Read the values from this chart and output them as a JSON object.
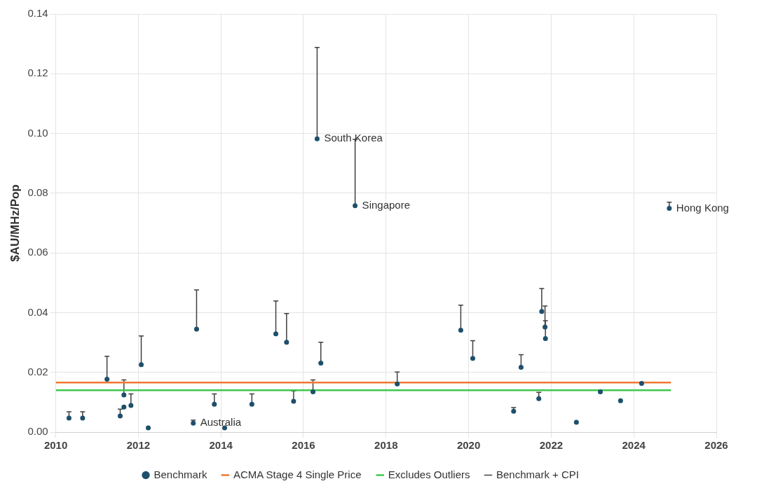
{
  "chart_data": {
    "type": "scatter",
    "ylabel": "$AU/MHz/Pop",
    "xlim": [
      2010,
      2026
    ],
    "xticks": [
      2010,
      2012,
      2014,
      2016,
      2018,
      2020,
      2022,
      2024,
      2026
    ],
    "ylim": [
      0,
      0.14
    ],
    "yticks": [
      {
        "value": 0,
        "label": "0.00"
      },
      {
        "value": 0.02,
        "label": "0.02"
      },
      {
        "value": 0.04,
        "label": "0.04"
      },
      {
        "value": 0.06,
        "label": "0.06"
      },
      {
        "value": 0.08,
        "label": "0.08"
      },
      {
        "value": 0.1,
        "label": "0.10"
      },
      {
        "value": 0.12,
        "label": "0.12"
      },
      {
        "value": 0.14,
        "label": "0.14"
      }
    ],
    "grid": true,
    "legend": "bottom",
    "series": [
      {
        "name": "Benchmark",
        "marker": "circle",
        "color": "#1d4f6b",
        "x": [
          2010.32,
          2010.65,
          2011.24,
          2011.56,
          2011.65,
          2011.65,
          2011.82,
          2012.07,
          2012.24,
          2013.33,
          2013.41,
          2013.84,
          2014.09,
          2014.75,
          2015.33,
          2015.59,
          2015.76,
          2016.23,
          2016.33,
          2016.42,
          2017.25,
          2018.27,
          2019.81,
          2020.1,
          2021.09,
          2021.27,
          2021.7,
          2021.77,
          2021.85,
          2021.86,
          2022.61,
          2023.19,
          2023.68,
          2024.19,
          2024.86
        ],
        "values": [
          0.0047,
          0.0047,
          0.0177,
          0.0054,
          0.0124,
          0.0084,
          0.0089,
          0.0226,
          0.0014,
          0.003,
          0.0345,
          0.0093,
          0.0014,
          0.0093,
          0.0329,
          0.0301,
          0.0103,
          0.0135,
          0.0982,
          0.0231,
          0.0758,
          0.0161,
          0.0341,
          0.0247,
          0.007,
          0.0217,
          0.0112,
          0.0404,
          0.0352,
          0.0313,
          0.0033,
          0.0135,
          0.0105,
          0.0163,
          0.0749
        ],
        "errors": [
          [
            0.0047,
            0.0068
          ],
          [
            0.0047,
            0.0068
          ],
          [
            0.0177,
            0.0254
          ],
          [
            0.0054,
            0.0077
          ],
          [
            0.0124,
            0.0175
          ],
          null,
          [
            0.0089,
            0.0128
          ],
          [
            0.0226,
            0.0322
          ],
          null,
          [
            0.003,
            0.004
          ],
          [
            0.0345,
            0.0476
          ],
          [
            0.0093,
            0.0128
          ],
          null,
          [
            0.0093,
            0.0128
          ],
          [
            0.0329,
            0.0439
          ],
          [
            0.0301,
            0.0397
          ],
          [
            0.0103,
            0.0138
          ],
          [
            0.0135,
            0.0175
          ],
          [
            0.0982,
            0.1288
          ],
          [
            0.0231,
            0.0301
          ],
          [
            0.0758,
            0.098
          ],
          [
            0.0161,
            0.0201
          ],
          [
            0.0341,
            0.0425
          ],
          [
            0.0247,
            0.0306
          ],
          [
            0.007,
            0.0082
          ],
          [
            0.0217,
            0.0259
          ],
          [
            0.0112,
            0.0133
          ],
          [
            0.0404,
            0.0481
          ],
          [
            0.0352,
            0.0422
          ],
          [
            0.0313,
            0.0373
          ],
          null,
          null,
          null,
          null,
          [
            0.0749,
            0.077
          ]
        ]
      },
      {
        "name": "ACMA Stage 4 Single Price",
        "type": "line",
        "marker": "none",
        "color": "#f07832",
        "x": [
          2010,
          2024.9
        ],
        "values": [
          0.0166,
          0.0166
        ]
      },
      {
        "name": "Excludes Outliers",
        "type": "line",
        "marker": "none",
        "color": "#3ec84e",
        "x": [
          2010,
          2024.9
        ],
        "values": [
          0.014,
          0.014
        ]
      }
    ],
    "annotations": [
      {
        "text": "South Korea",
        "x": 2016.33,
        "y": 0.0982
      },
      {
        "text": "Singapore",
        "x": 2017.25,
        "y": 0.0758
      },
      {
        "text": "Australia",
        "x": 2013.33,
        "y": 0.003
      },
      {
        "text": "Hong Kong",
        "x": 2024.86,
        "y": 0.0749
      },
      "Benchmark + CPI"
    ]
  }
}
